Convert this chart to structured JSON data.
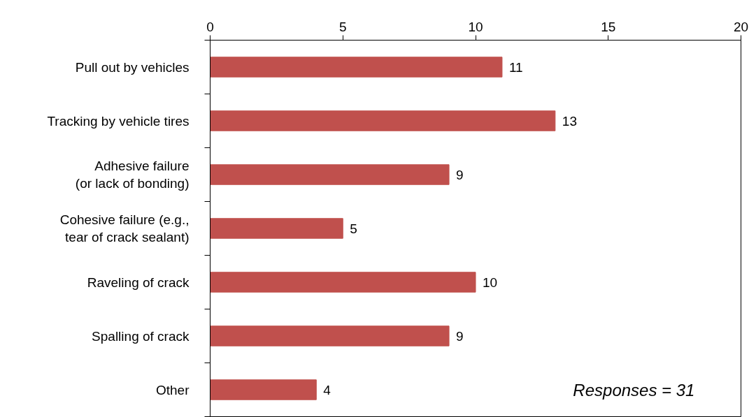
{
  "chart_data": {
    "type": "bar",
    "orientation": "horizontal",
    "categories": [
      "Pull out by vehicles",
      "Tracking by vehicle tires",
      "Adhesive failure\n(or lack of bonding)",
      "Cohesive failure (e.g.,\ntear of crack sealant)",
      "Raveling of crack",
      "Spalling of crack",
      "Other"
    ],
    "values": [
      11,
      13,
      9,
      5,
      10,
      9,
      4
    ],
    "color": "#c0504d",
    "xlim": [
      0,
      20
    ],
    "xticks": [
      0,
      5,
      10,
      15,
      20
    ],
    "data_labels": true,
    "annotations": [
      "Responses = 31"
    ]
  }
}
